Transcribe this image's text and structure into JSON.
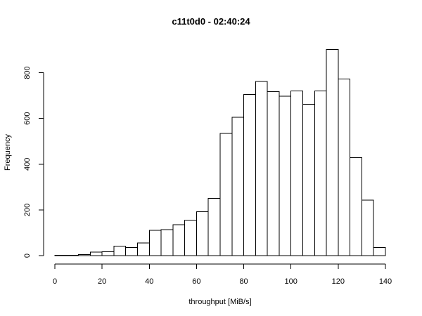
{
  "chart_data": {
    "type": "bar",
    "title": "c11t0d0 - 02:40:24",
    "xlabel": "throughput [MiB/s]",
    "ylabel": "Frequency",
    "xlim": [
      0,
      140
    ],
    "ylim": [
      0,
      900
    ],
    "x_ticks": [
      "0",
      "20",
      "40",
      "60",
      "80",
      "100",
      "120",
      "140"
    ],
    "y_ticks": [
      "0",
      "200",
      "400",
      "600",
      "800"
    ],
    "bin_width": 5,
    "bins": [
      {
        "start": 0,
        "end": 5,
        "value": 2
      },
      {
        "start": 5,
        "end": 10,
        "value": 2
      },
      {
        "start": 10,
        "end": 15,
        "value": 5
      },
      {
        "start": 15,
        "end": 20,
        "value": 15
      },
      {
        "start": 20,
        "end": 25,
        "value": 17
      },
      {
        "start": 25,
        "end": 30,
        "value": 42
      },
      {
        "start": 30,
        "end": 35,
        "value": 35
      },
      {
        "start": 35,
        "end": 40,
        "value": 55
      },
      {
        "start": 40,
        "end": 45,
        "value": 110
      },
      {
        "start": 45,
        "end": 50,
        "value": 113
      },
      {
        "start": 50,
        "end": 55,
        "value": 135
      },
      {
        "start": 55,
        "end": 60,
        "value": 155
      },
      {
        "start": 60,
        "end": 65,
        "value": 192
      },
      {
        "start": 65,
        "end": 70,
        "value": 250
      },
      {
        "start": 70,
        "end": 75,
        "value": 535
      },
      {
        "start": 75,
        "end": 80,
        "value": 605
      },
      {
        "start": 80,
        "end": 85,
        "value": 705
      },
      {
        "start": 85,
        "end": 90,
        "value": 762
      },
      {
        "start": 90,
        "end": 95,
        "value": 718
      },
      {
        "start": 95,
        "end": 100,
        "value": 698
      },
      {
        "start": 100,
        "end": 105,
        "value": 720
      },
      {
        "start": 105,
        "end": 110,
        "value": 662
      },
      {
        "start": 110,
        "end": 115,
        "value": 720
      },
      {
        "start": 115,
        "end": 120,
        "value": 902
      },
      {
        "start": 120,
        "end": 125,
        "value": 772
      },
      {
        "start": 125,
        "end": 130,
        "value": 428
      },
      {
        "start": 130,
        "end": 135,
        "value": 243
      },
      {
        "start": 135,
        "end": 140,
        "value": 35
      }
    ]
  }
}
